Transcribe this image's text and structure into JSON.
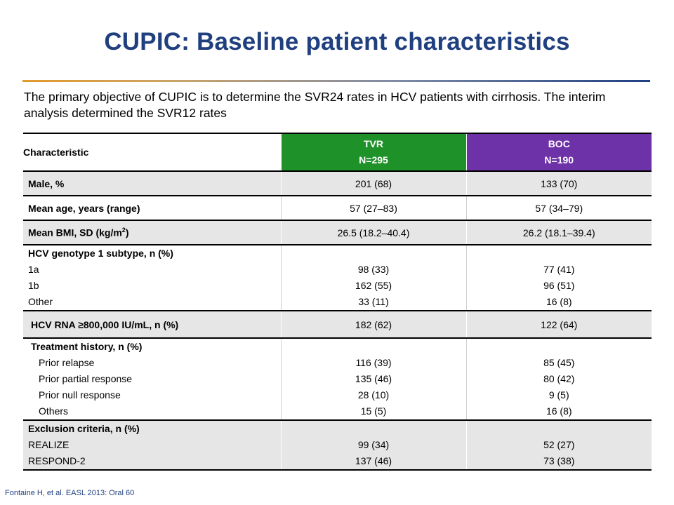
{
  "title": "CUPIC: Baseline patient characteristics",
  "subtitle": "The primary objective of CUPIC is to determine the SVR24 rates in HCV patients with cirrhosis. The interim analysis determined the SVR12 rates",
  "table": {
    "header": {
      "characteristic": "Characteristic",
      "tvr_name": "TVR",
      "tvr_n": "N=295",
      "boc_name": "BOC",
      "boc_n": "N=190"
    },
    "male": {
      "label": "Male, %",
      "tvr": "201 (68)",
      "boc": "133 (70)"
    },
    "age": {
      "label": "Mean age, years (range)",
      "tvr": "57 (27–83)",
      "boc": "57 (34–79)"
    },
    "bmi": {
      "label": "Mean BMI, SD (kg/m",
      "label_sup": "2",
      "label_end": ")",
      "tvr": "26.5 (18.2–40.4)",
      "boc": "26.2 (18.1–39.4)"
    },
    "genotype": {
      "label": "HCV genotype 1 subtype, n (%)",
      "rows": [
        {
          "label": "1a",
          "tvr": "98 (33)",
          "boc": "77 (41)"
        },
        {
          "label": "1b",
          "tvr": "162 (55)",
          "boc": "96 (51)"
        },
        {
          "label": "Other",
          "tvr": "33 (11)",
          "boc": "16 (8)"
        }
      ]
    },
    "rna": {
      "label": "HCV RNA ≥800,000 IU/mL, n (%)",
      "tvr": "182 (62)",
      "boc": "122 (64)"
    },
    "history": {
      "label": "Treatment history, n (%)",
      "rows": [
        {
          "label": "Prior relapse",
          "tvr": "116 (39)",
          "boc": "85 (45)"
        },
        {
          "label": "Prior partial response",
          "tvr": "135 (46)",
          "boc": "80 (42)"
        },
        {
          "label": "Prior null response",
          "tvr": "28 (10)",
          "boc": "9 (5)"
        },
        {
          "label": "Others",
          "tvr": "15 (5)",
          "boc": "16 (8)"
        }
      ]
    },
    "exclusion": {
      "label": "Exclusion criteria, n (%)",
      "rows": [
        {
          "label": "REALIZE",
          "tvr": "99 (34)",
          "boc": "52 (27)"
        },
        {
          "label": "RESPOND-2",
          "tvr": "137 (46)",
          "boc": "73 (38)"
        }
      ]
    }
  },
  "footer": "Fontaine H, et al. EASL 2013: Oral 60",
  "colors": {
    "title": "#1f3f7f",
    "tvr_header": "#1f9129",
    "boc_header": "#6d31a8",
    "row_shade": "#e6e6e6"
  }
}
